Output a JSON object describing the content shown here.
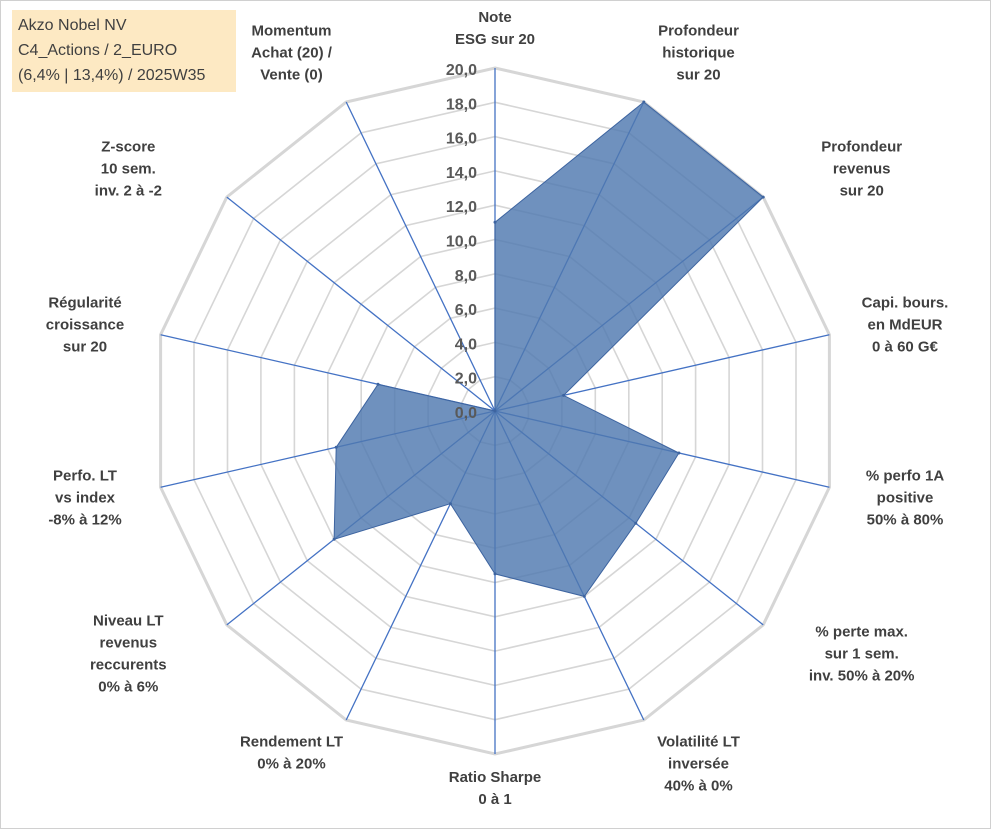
{
  "info": {
    "line1": "Akzo Nobel NV",
    "line2": "C4_Actions / 2_EURO",
    "line3": "(6,4% | 13,4%) / 2025W35"
  },
  "chart_data": {
    "type": "radar",
    "rmin": 0,
    "rmax": 20,
    "step": 2,
    "grid": true,
    "tick_labels": [
      "0,0",
      "2,0",
      "4,0",
      "6,0",
      "8,0",
      "10,0",
      "12,0",
      "14,0",
      "16,0",
      "18,0",
      "20,0"
    ],
    "axes": [
      {
        "label": [
          "Note",
          "ESG sur 20"
        ]
      },
      {
        "label": [
          "Profondeur",
          "historique",
          "sur 20"
        ]
      },
      {
        "label": [
          "Profondeur",
          "revenus",
          "sur 20"
        ]
      },
      {
        "label": [
          "Capi. bours.",
          "en MdEUR",
          "0 à 60 G€"
        ]
      },
      {
        "label": [
          "% perfo 1A",
          "positive",
          "50% à 80%"
        ]
      },
      {
        "label": [
          "% perte max.",
          "sur 1 sem.",
          "inv. 50% à 20%"
        ]
      },
      {
        "label": [
          "Volatilité LT",
          "inversée",
          "40% à 0%"
        ]
      },
      {
        "label": [
          "Ratio Sharpe",
          "0 à 1"
        ]
      },
      {
        "label": [
          "Rendement LT",
          "0% à 20%"
        ]
      },
      {
        "label": [
          "Niveau LT",
          "revenus",
          "reccurents",
          "0% à 6%"
        ]
      },
      {
        "label": [
          "Perfo. LT",
          "vs index",
          "-8% à 12%"
        ]
      },
      {
        "label": [
          "Régularité",
          "croissance",
          "sur 20"
        ]
      },
      {
        "label": [
          "Z-score",
          "10 sem.",
          "inv. 2 à -2"
        ]
      },
      {
        "label": [
          "Momentum",
          "Achat (20) /",
          "Vente (0)"
        ]
      }
    ],
    "series": [
      {
        "values": [
          11.0,
          20.0,
          20.0,
          4.1,
          11.0,
          10.5,
          12.0,
          9.5,
          6.0,
          12.0,
          9.5,
          7.0,
          0.0,
          0.0
        ],
        "color": "#4f79b0"
      }
    ]
  }
}
